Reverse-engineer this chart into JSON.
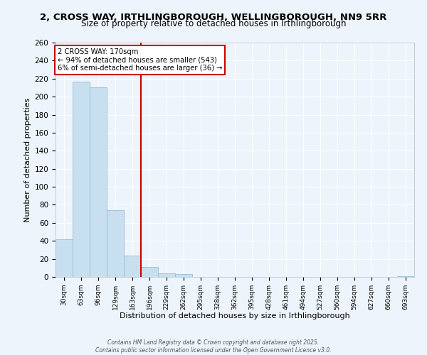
{
  "title": "2, CROSS WAY, IRTHLINGBOROUGH, WELLINGBOROUGH, NN9 5RR",
  "subtitle": "Size of property relative to detached houses in Irthlingborough",
  "xlabel": "Distribution of detached houses by size in Irthlingborough",
  "ylabel": "Number of detached properties",
  "bar_labels": [
    "30sqm",
    "63sqm",
    "96sqm",
    "129sqm",
    "163sqm",
    "196sqm",
    "229sqm",
    "262sqm",
    "295sqm",
    "328sqm",
    "362sqm",
    "395sqm",
    "428sqm",
    "461sqm",
    "494sqm",
    "527sqm",
    "560sqm",
    "594sqm",
    "627sqm",
    "660sqm",
    "693sqm"
  ],
  "bar_values": [
    42,
    217,
    210,
    74,
    24,
    11,
    4,
    3,
    0,
    0,
    0,
    0,
    0,
    0,
    0,
    0,
    0,
    0,
    0,
    0,
    1
  ],
  "bar_color": "#c8dff0",
  "bar_edge_color": "#9bbdd4",
  "ylim": [
    0,
    260
  ],
  "yticks": [
    0,
    20,
    40,
    60,
    80,
    100,
    120,
    140,
    160,
    180,
    200,
    220,
    240,
    260
  ],
  "property_label": "2 CROSS WAY: 170sqm",
  "annotation_line1": "← 94% of detached houses are smaller (543)",
  "annotation_line2": "6% of semi-detached houses are larger (36) →",
  "vline_color": "#cc0000",
  "vline_x_index": 4.5,
  "footer_line1": "Contains HM Land Registry data © Crown copyright and database right 2025.",
  "footer_line2": "Contains public sector information licensed under the Open Government Licence v3.0.",
  "background_color": "#eef4fb",
  "grid_color": "#ffffff",
  "title_fontsize": 9.5,
  "subtitle_fontsize": 8.5
}
